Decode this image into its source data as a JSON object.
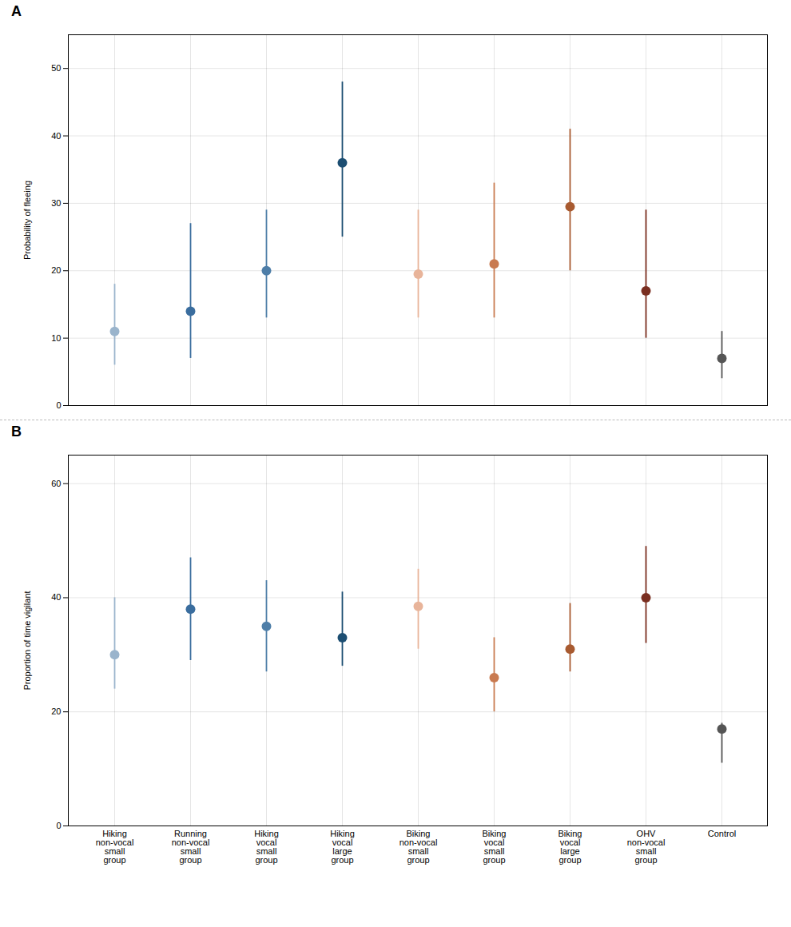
{
  "chart_data": [
    {
      "type": "errorbar",
      "title": "A",
      "categories": [
        null,
        null,
        null,
        null,
        null,
        null,
        null,
        null,
        null
      ],
      "values": [
        11,
        14,
        20,
        36,
        19.5,
        21,
        29.5,
        17,
        7
      ],
      "lower": [
        6,
        7,
        13,
        25,
        13,
        13,
        20,
        10,
        4
      ],
      "upper": [
        18,
        27,
        29,
        48,
        29,
        33,
        41,
        29,
        11
      ],
      "colors": [
        "#9ab4cc",
        "#3a6d9e",
        "#4e7ea8",
        "#1c4e72",
        "#e8b49a",
        "#c97a50",
        "#a85a30",
        "#7a2e20",
        "#555555"
      ],
      "y_label": "Probability of fleeing",
      "ylim": [
        0,
        55
      ],
      "yticks": [
        0,
        10,
        20,
        30,
        40,
        50
      ],
      "grid": true,
      "tick_labels": "y"
    },
    {
      "type": "errorbar",
      "title": "B",
      "categories": [
        "Hiking\nnon-vocal\nsmall\ngroup",
        "Running\nnon-vocal\nsmall\ngroup",
        "Hiking\nvocal\nsmall\ngroup",
        "Hiking\nvocal\nlarge\ngroup",
        "Biking\nnon-vocal\nsmall\ngroup",
        "Biking\nvocal\nsmall\ngroup",
        "Biking\nvocal\nlarge\ngroup",
        "OHV\nnon-vocal\nsmall\ngroup",
        "Control"
      ],
      "values": [
        30,
        38,
        35,
        33,
        38.5,
        26,
        31,
        40,
        17
      ],
      "lower": [
        24,
        29,
        27,
        28,
        31,
        20,
        27,
        32,
        11
      ],
      "upper": [
        40,
        47,
        43,
        41,
        45,
        33,
        39,
        49,
        18
      ],
      "colors": [
        "#9ab4cc",
        "#3a6d9e",
        "#4e7ea8",
        "#1c4e72",
        "#e8b49a",
        "#c97a50",
        "#a85a30",
        "#7a2e20",
        "#555555"
      ],
      "y_label": "Proportion of time vigilant",
      "ylim": [
        0,
        65
      ],
      "yticks": [
        0,
        20,
        40,
        60
      ],
      "grid": true
    }
  ]
}
